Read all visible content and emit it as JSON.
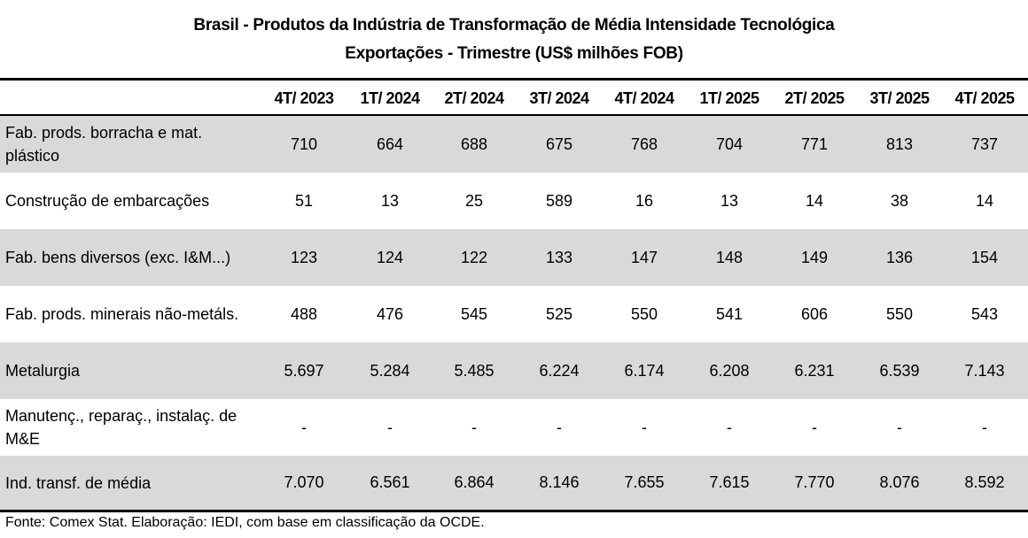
{
  "title": {
    "line1": "Brasil - Produtos da Indústria de Transformação de Média Intensidade Tecnológica",
    "line2": "Exportações - Trimestre (US$ milhões FOB)"
  },
  "table": {
    "columns": [
      "4T/ 2023",
      "1T/ 2024",
      "2T/ 2024",
      "3T/ 2024",
      "4T/ 2024",
      "1T/ 2025",
      "2T/ 2025",
      "3T/ 2025",
      "4T/ 2025"
    ],
    "rows": [
      {
        "label": "Fab. prods. borracha e mat. plástico",
        "values": [
          "710",
          "664",
          "688",
          "675",
          "768",
          "704",
          "771",
          "813",
          "737"
        ],
        "shaded": true
      },
      {
        "label": "Construção de embarcações",
        "values": [
          "51",
          "13",
          "25",
          "589",
          "16",
          "13",
          "14",
          "38",
          "14"
        ],
        "shaded": false
      },
      {
        "label": "Fab. bens diversos (exc. I&M...)",
        "values": [
          "123",
          "124",
          "122",
          "133",
          "147",
          "148",
          "149",
          "136",
          "154"
        ],
        "shaded": true
      },
      {
        "label": "Fab. prods. minerais não-metáls.",
        "values": [
          "488",
          "476",
          "545",
          "525",
          "550",
          "541",
          "606",
          "550",
          "543"
        ],
        "shaded": false
      },
      {
        "label": "Metalurgia",
        "values": [
          "5.697",
          "5.284",
          "5.485",
          "6.224",
          "6.174",
          "6.208",
          "6.231",
          "6.539",
          "7.143"
        ],
        "shaded": true
      },
      {
        "label": "Manutenç., reparaç., instalaç. de M&E",
        "values": [
          "-",
          "-",
          "-",
          "-",
          "-",
          "-",
          "-",
          "-",
          "-"
        ],
        "shaded": false
      },
      {
        "label": "Ind. transf. de média",
        "values": [
          "7.070",
          "6.561",
          "6.864",
          "8.146",
          "7.655",
          "7.615",
          "7.770",
          "8.076",
          "8.592"
        ],
        "shaded": true
      }
    ]
  },
  "footnote": "Fonte: Comex Stat. Elaboração: IEDI, com base em classificação da OCDE.",
  "colors": {
    "row_shade": "#d9d9d9",
    "rule": "#000000"
  }
}
